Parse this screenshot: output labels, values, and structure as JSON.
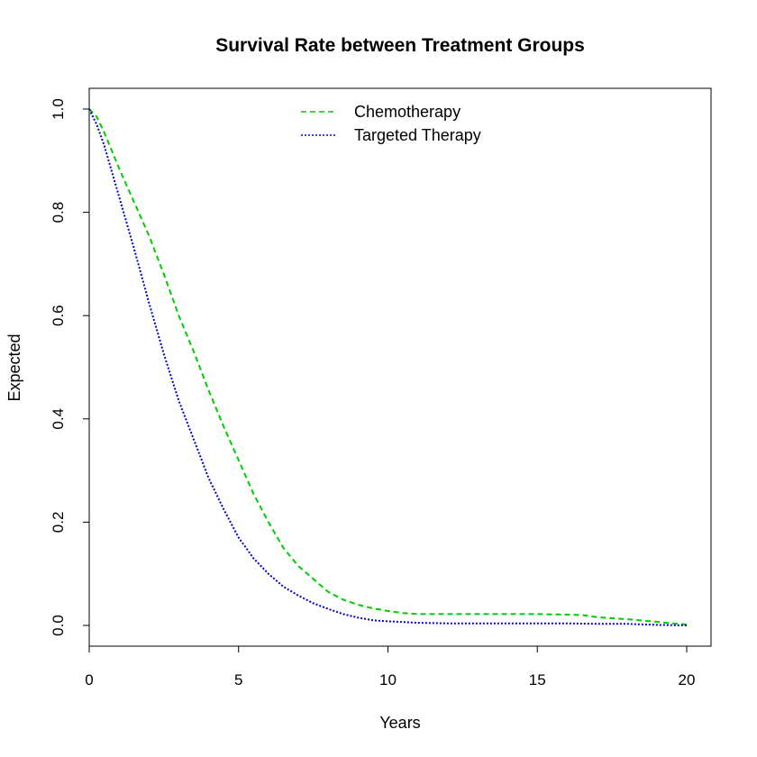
{
  "chart_data": {
    "type": "line",
    "title": "Survival Rate between Treatment Groups",
    "xlabel": "Years",
    "ylabel": "Expected",
    "xlim": [
      0,
      20
    ],
    "ylim": [
      0,
      1.0
    ],
    "xticks": [
      "0",
      "5",
      "10",
      "15",
      "20"
    ],
    "yticks": [
      "0.0",
      "0.2",
      "0.4",
      "0.6",
      "0.8",
      "1.0"
    ],
    "grid": false,
    "legend_position": "top-center",
    "series": [
      {
        "name": "Chemotherapy",
        "color": "#00cc00",
        "line_style": "dashed",
        "x": [
          0,
          0.25,
          0.5,
          0.75,
          1,
          1.5,
          2,
          2.5,
          3,
          3.5,
          4,
          4.5,
          5,
          5.5,
          6,
          6.5,
          7,
          7.5,
          8,
          8.5,
          9,
          9.5,
          10,
          10.5,
          11,
          12,
          13,
          14,
          15,
          16,
          16.5,
          17,
          18,
          19,
          19.5,
          20
        ],
        "y": [
          1.0,
          0.985,
          0.955,
          0.92,
          0.885,
          0.82,
          0.755,
          0.68,
          0.6,
          0.53,
          0.455,
          0.385,
          0.32,
          0.255,
          0.2,
          0.15,
          0.115,
          0.09,
          0.065,
          0.05,
          0.04,
          0.033,
          0.028,
          0.024,
          0.022,
          0.022,
          0.022,
          0.022,
          0.022,
          0.021,
          0.02,
          0.016,
          0.012,
          0.007,
          0.004,
          0.002
        ]
      },
      {
        "name": "Targeted Therapy",
        "color": "#0000cc",
        "line_style": "dotted",
        "x": [
          0,
          0.25,
          0.5,
          0.75,
          1,
          1.5,
          2,
          2.5,
          3,
          3.5,
          4,
          4.5,
          5,
          5.5,
          6,
          6.5,
          7,
          7.5,
          8,
          8.5,
          9,
          9.5,
          10,
          11,
          12,
          14,
          16,
          17,
          18,
          19,
          20
        ],
        "y": [
          1.0,
          0.97,
          0.93,
          0.88,
          0.83,
          0.73,
          0.625,
          0.525,
          0.435,
          0.36,
          0.285,
          0.225,
          0.17,
          0.13,
          0.1,
          0.075,
          0.058,
          0.043,
          0.032,
          0.022,
          0.015,
          0.01,
          0.008,
          0.005,
          0.004,
          0.004,
          0.004,
          0.003,
          0.003,
          0.001,
          0.0
        ]
      }
    ]
  }
}
